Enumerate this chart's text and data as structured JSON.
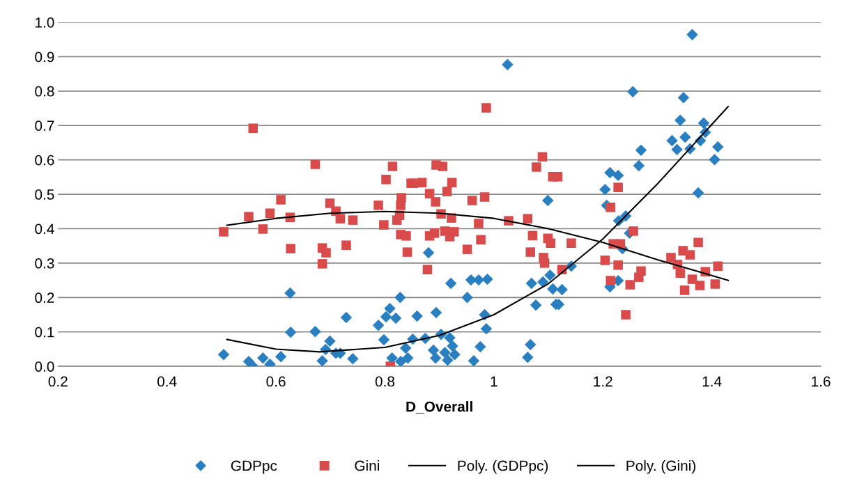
{
  "chart_data": {
    "type": "scatter",
    "xlabel": "D_Overall",
    "xlim": [
      0.2,
      1.6
    ],
    "xticks": [
      0.2,
      0.4,
      0.6,
      0.8,
      1,
      1.2,
      1.4,
      1.6
    ],
    "ylim": [
      0,
      1
    ],
    "yticks": [
      {
        "value": 0,
        "label": "0.0"
      },
      0.1,
      0.2,
      0.3,
      0.4,
      0.5,
      0.6,
      0.7,
      0.8,
      0.9,
      {
        "value": 1,
        "label": "1.0"
      }
    ],
    "grid": "y",
    "legend": "bottom",
    "series": [
      {
        "name": "GDPpc",
        "marker": "diamond",
        "color": "#2a7fc1",
        "x": [
          0.504,
          0.55,
          0.558,
          0.576,
          0.589,
          0.609,
          0.626,
          0.627,
          0.672,
          0.685,
          0.699,
          0.691,
          0.71,
          0.718,
          0.729,
          0.741,
          0.788,
          0.798,
          0.809,
          0.802,
          0.82,
          0.828,
          0.859,
          0.838,
          0.851,
          0.813,
          0.829,
          0.842,
          0.874,
          0.88,
          0.889,
          0.893,
          0.894,
          0.903,
          0.91,
          0.915,
          0.919,
          0.924,
          0.928,
          0.921,
          0.951,
          0.958,
          0.972,
          0.988,
          0.963,
          0.975,
          0.983,
          0.986,
          1.025,
          1.067,
          1.062,
          1.077,
          1.114,
          1.125,
          1.108,
          1.069,
          1.09,
          1.103,
          1.099,
          1.142,
          1.119,
          1.342,
          1.385,
          1.388,
          1.327,
          1.351,
          1.379,
          1.336,
          1.36,
          1.411,
          1.405,
          1.27,
          1.266,
          1.213,
          1.228,
          1.204,
          1.207,
          1.375,
          1.242,
          1.229,
          1.249,
          1.236,
          1.228,
          1.213,
          1.364,
          1.348,
          1.255
        ],
        "values": [
          0.034,
          0.014,
          0.0,
          0.024,
          0.006,
          0.028,
          0.213,
          0.099,
          0.101,
          0.016,
          0.073,
          0.049,
          0.038,
          0.038,
          0.142,
          0.022,
          0.119,
          0.077,
          0.168,
          0.144,
          0.14,
          0.2,
          0.146,
          0.053,
          0.079,
          0.024,
          0.014,
          0.024,
          0.081,
          0.33,
          0.047,
          0.024,
          0.156,
          0.093,
          0.04,
          0.018,
          0.083,
          0.059,
          0.034,
          0.241,
          0.2,
          0.251,
          0.251,
          0.253,
          0.016,
          0.057,
          0.15,
          0.109,
          0.877,
          0.063,
          0.026,
          0.178,
          0.18,
          0.223,
          0.225,
          0.241,
          0.245,
          0.265,
          0.482,
          0.291,
          0.18,
          0.715,
          0.707,
          0.68,
          0.656,
          0.666,
          0.656,
          0.63,
          0.632,
          0.638,
          0.601,
          0.628,
          0.583,
          0.563,
          0.555,
          0.514,
          0.468,
          0.504,
          0.437,
          0.423,
          0.387,
          0.342,
          0.249,
          0.231,
          0.964,
          0.781,
          0.798
        ]
      },
      {
        "name": "Gini",
        "marker": "square",
        "color": "#d94b4b",
        "x": [
          0.504,
          0.558,
          0.55,
          0.576,
          0.589,
          0.609,
          0.626,
          0.627,
          0.672,
          0.685,
          0.692,
          0.685,
          0.699,
          0.71,
          0.718,
          0.741,
          0.729,
          0.788,
          0.798,
          0.802,
          0.814,
          0.848,
          0.83,
          0.829,
          0.827,
          0.822,
          0.829,
          0.839,
          0.841,
          0.81,
          0.986,
          0.894,
          0.906,
          0.852,
          0.868,
          0.923,
          0.882,
          0.914,
          0.893,
          0.96,
          0.983,
          0.903,
          0.922,
          0.972,
          1.027,
          1.062,
          1.089,
          1.078,
          1.108,
          1.117,
          0.882,
          0.891,
          0.91,
          0.927,
          0.919,
          0.976,
          0.951,
          0.878,
          1.071,
          1.099,
          1.104,
          1.142,
          1.067,
          1.091,
          1.093,
          1.125,
          1.228,
          1.214,
          1.256,
          1.219,
          1.232,
          1.204,
          1.228,
          1.214,
          1.25,
          1.27,
          1.266,
          1.242,
          1.325,
          1.347,
          1.36,
          1.375,
          1.337,
          1.342,
          1.364,
          1.35,
          1.378,
          1.388,
          1.411,
          1.406
        ],
        "values": [
          0.391,
          0.692,
          0.435,
          0.399,
          0.445,
          0.484,
          0.433,
          0.342,
          0.587,
          0.344,
          0.33,
          0.298,
          0.474,
          0.451,
          0.429,
          0.425,
          0.352,
          0.468,
          0.411,
          0.543,
          0.581,
          0.532,
          0.49,
          0.468,
          0.439,
          0.425,
          0.383,
          0.379,
          0.332,
          0.0,
          0.751,
          0.585,
          0.581,
          0.532,
          0.534,
          0.534,
          0.502,
          0.508,
          0.478,
          0.482,
          0.492,
          0.443,
          0.431,
          0.415,
          0.423,
          0.429,
          0.609,
          0.579,
          0.551,
          0.551,
          0.379,
          0.387,
          0.393,
          0.391,
          0.377,
          0.368,
          0.34,
          0.281,
          0.38,
          0.372,
          0.358,
          0.358,
          0.332,
          0.316,
          0.3,
          0.281,
          0.52,
          0.462,
          0.393,
          0.356,
          0.356,
          0.308,
          0.294,
          0.249,
          0.237,
          0.277,
          0.259,
          0.15,
          0.316,
          0.336,
          0.324,
          0.36,
          0.296,
          0.271,
          0.253,
          0.221,
          0.235,
          0.275,
          0.291,
          0.239
        ]
      },
      {
        "name": "Poly. (GDPpc)",
        "type": "line",
        "line_style": "solid",
        "color": "#000000",
        "x": [
          0.51,
          0.6,
          0.68,
          0.8,
          0.9,
          1.0,
          1.1,
          1.2,
          1.3,
          1.43
        ],
        "values": [
          0.078,
          0.05,
          0.042,
          0.055,
          0.09,
          0.15,
          0.24,
          0.37,
          0.53,
          0.755
        ]
      },
      {
        "name": "Poly. (Gini)",
        "type": "line",
        "line_style": "solid",
        "color": "#000000",
        "x": [
          0.51,
          0.6,
          0.7,
          0.8,
          0.9,
          1.0,
          1.1,
          1.2,
          1.3,
          1.43
        ],
        "values": [
          0.41,
          0.43,
          0.445,
          0.45,
          0.445,
          0.43,
          0.4,
          0.36,
          0.31,
          0.25
        ]
      }
    ]
  }
}
